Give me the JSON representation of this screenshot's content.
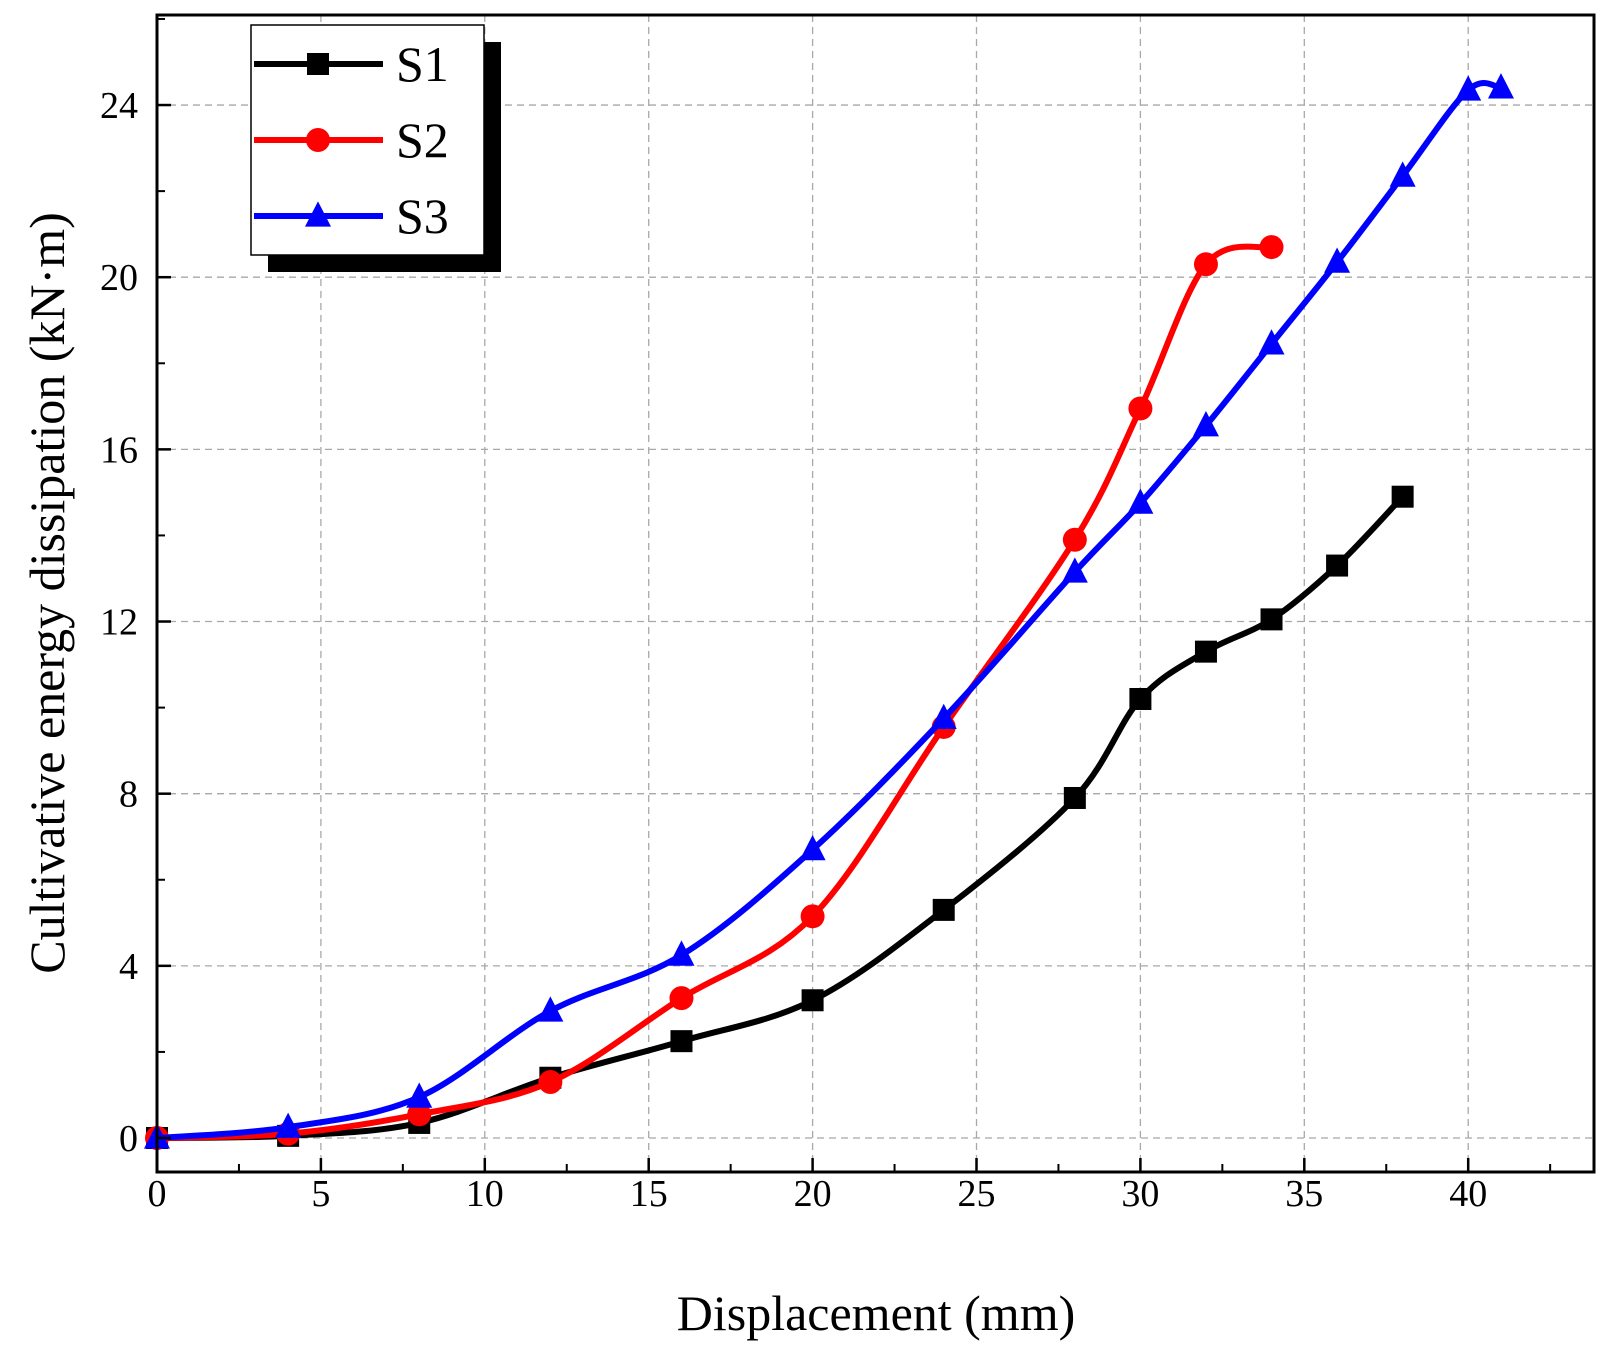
{
  "chart_data": {
    "type": "line",
    "title": "",
    "xlabel": "Displacement (mm)",
    "ylabel": "Cultivative energy dissipation (kN·m)",
    "xlim": [
      0,
      44
    ],
    "ylim": [
      0,
      26
    ],
    "xticks": [
      0,
      5,
      10,
      15,
      20,
      25,
      30,
      35,
      40
    ],
    "yticks": [
      0,
      4,
      8,
      12,
      16,
      20,
      24
    ],
    "grid": true,
    "legend_position": "top-left",
    "series": [
      {
        "name": "S1",
        "color": "#000000",
        "marker": "square",
        "x": [
          0,
          4,
          8,
          12,
          16,
          20,
          24,
          28,
          30,
          32,
          34,
          36,
          38
        ],
        "y": [
          0,
          0.05,
          0.35,
          1.4,
          2.25,
          3.2,
          5.3,
          7.9,
          10.2,
          11.3,
          12.05,
          13.3,
          14.9
        ]
      },
      {
        "name": "S2",
        "color": "#ff0000",
        "marker": "circle",
        "x": [
          0,
          4,
          8,
          12,
          16,
          20,
          24,
          28,
          30,
          32,
          34
        ],
        "y": [
          0,
          0.1,
          0.55,
          1.3,
          3.25,
          5.15,
          9.55,
          13.9,
          16.95,
          20.3,
          20.7
        ]
      },
      {
        "name": "S3",
        "color": "#0000ff",
        "marker": "triangle",
        "x": [
          0,
          4,
          8,
          12,
          16,
          20,
          24,
          28,
          30,
          32,
          34,
          36,
          38,
          40,
          41
        ],
        "y": [
          0,
          0.25,
          0.95,
          2.95,
          4.25,
          6.7,
          9.75,
          13.15,
          14.75,
          16.55,
          18.45,
          20.35,
          22.35,
          24.35,
          24.4
        ]
      }
    ]
  }
}
